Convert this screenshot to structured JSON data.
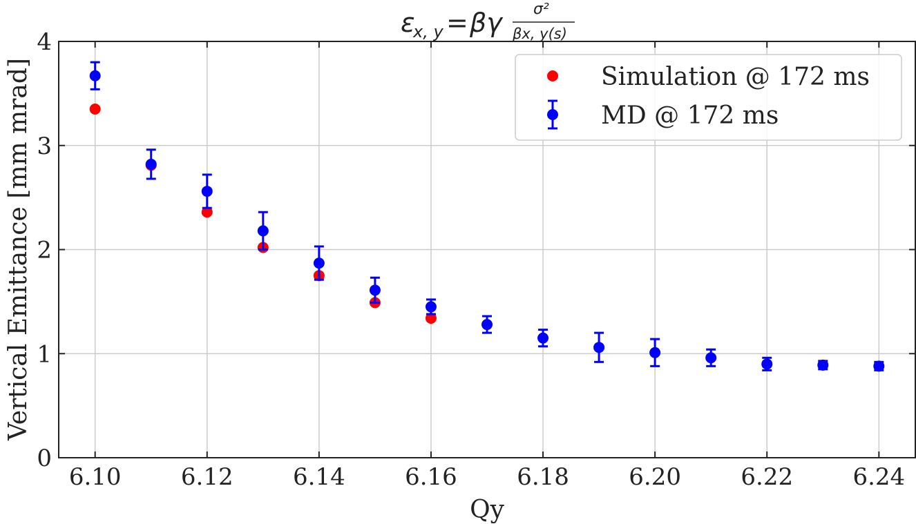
{
  "chart_data": {
    "type": "scatter",
    "title": "εx, y = βγσ²/βx, y(s)",
    "xlabel": "Qy",
    "ylabel": "Vertical Emittance [mm mrad]",
    "xlim": [
      6.0935,
      6.2465
    ],
    "ylim": [
      0,
      4
    ],
    "xticks": [
      6.1,
      6.12,
      6.14,
      6.16,
      6.18,
      6.2,
      6.22,
      6.24
    ],
    "xtick_labels": [
      "6.10",
      "6.12",
      "6.14",
      "6.16",
      "6.18",
      "6.20",
      "6.22",
      "6.24"
    ],
    "yticks": [
      0,
      1,
      2,
      3,
      4
    ],
    "ytick_labels": [
      "0",
      "1",
      "2",
      "3",
      "4"
    ],
    "grid": true,
    "legend_position": "top-right",
    "series": [
      {
        "name": "Simulation @ 172 ms",
        "color": "#ff0000",
        "marker": "circle",
        "x": [
          6.1,
          6.11,
          6.12,
          6.13,
          6.14,
          6.15,
          6.16
        ],
        "y": [
          3.35,
          2.81,
          2.36,
          2.02,
          1.75,
          1.49,
          1.34
        ]
      },
      {
        "name": "MD @ 172 ms",
        "color": "#0000ff",
        "marker": "circle",
        "errorbars": true,
        "x": [
          6.1,
          6.11,
          6.12,
          6.13,
          6.14,
          6.15,
          6.16,
          6.17,
          6.18,
          6.19,
          6.2,
          6.21,
          6.22,
          6.23,
          6.24
        ],
        "y": [
          3.67,
          2.82,
          2.56,
          2.18,
          1.87,
          1.61,
          1.45,
          1.28,
          1.15,
          1.06,
          1.01,
          0.96,
          0.9,
          0.89,
          0.88
        ],
        "yerr": [
          0.13,
          0.14,
          0.16,
          0.18,
          0.16,
          0.12,
          0.07,
          0.08,
          0.08,
          0.14,
          0.13,
          0.08,
          0.06,
          0.04,
          0.04
        ]
      }
    ]
  }
}
